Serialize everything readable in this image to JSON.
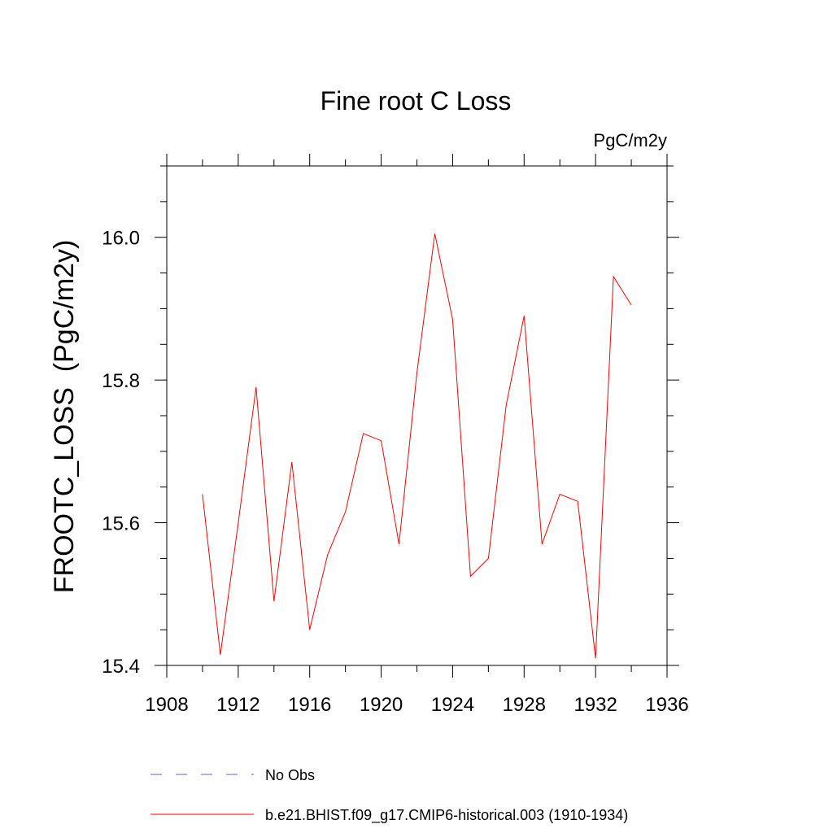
{
  "chart_data": {
    "type": "line",
    "title": "Fine root C Loss",
    "units_label": "PgC/m2y",
    "ylabel": "FROOTC_LOSS  (PgC/m2y)",
    "xlabel": "",
    "xlim": [
      1908,
      1936
    ],
    "ylim": [
      15.4,
      16.1
    ],
    "x_ticks": [
      1908,
      1912,
      1916,
      1920,
      1924,
      1928,
      1932,
      1936
    ],
    "x_tick_labels": [
      "1908",
      "1912",
      "1916",
      "1920",
      "1924",
      "1928",
      "1932",
      "1936"
    ],
    "y_ticks": [
      15.4,
      15.6,
      15.8,
      16.0
    ],
    "y_tick_labels": [
      "15.4",
      "15.6",
      "15.8",
      "16.0"
    ],
    "grid": false,
    "legend_position": "bottom",
    "legend": [
      {
        "label": "No Obs",
        "color": "#6a5acd",
        "dash": "dashed"
      },
      {
        "label": "b.e21.BHIST.f09_g17.CMIP6-historical.003 (1910-1934)",
        "color": "#ff0000",
        "dash": "solid"
      }
    ],
    "series": [
      {
        "name": "b.e21.BHIST.f09_g17.CMIP6-historical.003 (1910-1934)",
        "color": "#ff0000",
        "x": [
          1910,
          1911,
          1912,
          1913,
          1914,
          1915,
          1916,
          1917,
          1918,
          1919,
          1920,
          1921,
          1922,
          1923,
          1924,
          1925,
          1926,
          1927,
          1928,
          1929,
          1930,
          1931,
          1932,
          1933,
          1934
        ],
        "values": [
          15.64,
          15.415,
          15.6,
          15.79,
          15.49,
          15.685,
          15.45,
          15.555,
          15.615,
          15.725,
          15.715,
          15.57,
          15.81,
          16.005,
          15.885,
          15.525,
          15.55,
          15.765,
          15.89,
          15.57,
          15.64,
          15.63,
          15.41,
          15.945,
          15.905
        ]
      }
    ]
  }
}
